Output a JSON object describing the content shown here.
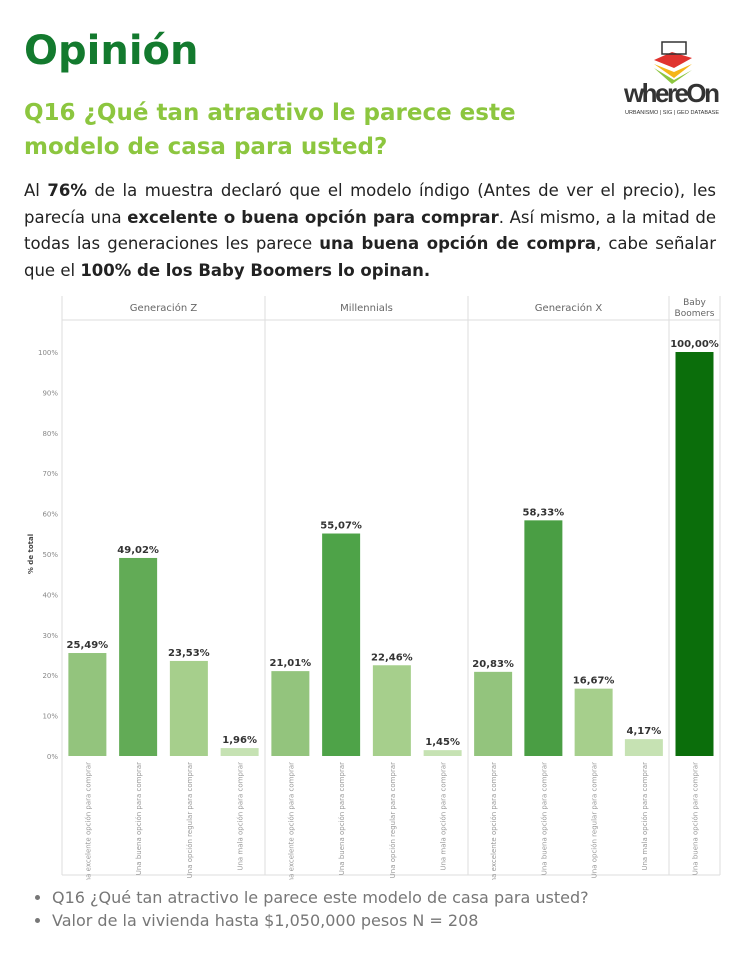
{
  "header": {
    "title": "Opinión",
    "question": "Q16 ¿Qué tan atractivo le parece este modelo de casa para usted?",
    "logo_text": "whereOn",
    "logo_tagline": "URBANISMO | SIG | GEO DATABASE"
  },
  "summary": {
    "p1": "Al ",
    "b1": "76%",
    "p2": " de la muestra declaró que el modelo índigo (Antes de ver el precio), les parecía una ",
    "b2": "excelente o buena opción para comprar",
    "p3": ". Así mismo, a la mitad de todas las generaciones les parece ",
    "b3": "una buena opción de compra",
    "p4": ", cabe señalar que el ",
    "b4": "100% de los Baby Boomers lo opinan."
  },
  "chart_data": {
    "type": "bar",
    "ylabel": "% de total",
    "ylim": [
      0,
      100
    ],
    "yticks": [
      "0%",
      "10%",
      "20%",
      "30%",
      "40%",
      "50%",
      "60%",
      "70%",
      "80%",
      "90%",
      "100%"
    ],
    "panels": [
      {
        "name": "Generación Z",
        "categories": [
          "Una excelente opción para comprar",
          "Una buena opción para comprar",
          "Una opción regular para comprar",
          "Una mala opción para comprar"
        ],
        "values": [
          25.49,
          49.02,
          23.53,
          1.96
        ],
        "labels": [
          "25,49%",
          "49,02%",
          "23,53%",
          "1,96%"
        ]
      },
      {
        "name": "Millennials",
        "categories": [
          "Una excelente opción para comprar",
          "Una buena opción para comprar",
          "Una opción regular para comprar",
          "Una mala opción para comprar"
        ],
        "values": [
          21.01,
          55.07,
          22.46,
          1.45
        ],
        "labels": [
          "21,01%",
          "55,07%",
          "22,46%",
          "1,45%"
        ]
      },
      {
        "name": "Generación X",
        "categories": [
          "Una excelente opción para comprar",
          "Una buena opción para comprar",
          "Una opción regular para comprar",
          "Una mala opción para comprar"
        ],
        "values": [
          20.83,
          58.33,
          16.67,
          4.17
        ],
        "labels": [
          "20,83%",
          "58,33%",
          "16,67%",
          "4,17%"
        ]
      },
      {
        "name": "Baby Boomers",
        "categories": [
          "Una buena opción para comprar"
        ],
        "values": [
          100
        ],
        "labels": [
          "100,00%"
        ]
      }
    ],
    "colors": {
      "excelente": "#93c47d",
      "buena_z": "#62ab56",
      "buena_m": "#4ea348",
      "buena_x": "#4a9e44",
      "regular": "#a6cf8c",
      "mala": "#c6e2b3",
      "boomers": "#0b6e0b"
    }
  },
  "footnotes": [
    "Q16 ¿Qué tan atractivo le parece este modelo de casa para usted?",
    "Valor de la vivienda hasta $1,050,000 pesos N = 208"
  ]
}
